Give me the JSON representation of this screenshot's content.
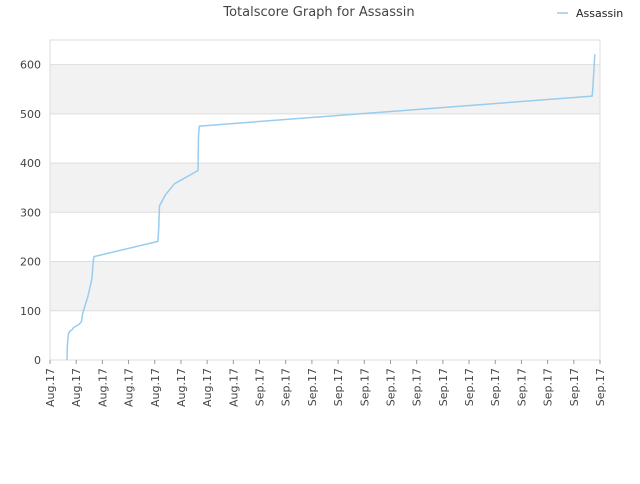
{
  "chart_data": {
    "type": "line",
    "title": "Totalscore Graph for Assassin",
    "xlabel": "",
    "ylabel": "",
    "ylim": [
      0,
      650
    ],
    "y_ticks": [
      0,
      100,
      200,
      300,
      400,
      500,
      600
    ],
    "x_tick_labels": [
      "Aug.17",
      "Aug.17",
      "Aug.17",
      "Aug.17",
      "Aug.17",
      "Aug.17",
      "Aug.17",
      "Aug.17",
      "Sep.17",
      "Sep.17",
      "Sep.17",
      "Sep.17",
      "Sep.17",
      "Sep.17",
      "Sep.17",
      "Sep.17",
      "Sep.17",
      "Sep.17",
      "Sep.17",
      "Sep.17",
      "Sep.17",
      "Sep.17"
    ],
    "grid": true,
    "legend_position": "top-right",
    "colors": {
      "series": "#99ccf0",
      "band": "#f2f2f2",
      "band_top": "#ebebeb",
      "grid": "#dddddd"
    },
    "series": [
      {
        "name": "Assassin",
        "x_index": [
          0.65,
          0.66,
          0.68,
          0.7,
          0.75,
          0.85,
          0.9,
          1.1,
          1.2,
          1.25,
          1.45,
          1.6,
          1.65,
          1.68,
          4.12,
          4.15,
          4.18,
          4.4,
          4.75,
          5.65,
          5.67,
          5.7,
          5.9,
          20.7,
          20.72,
          20.8
        ],
        "values": [
          0,
          28,
          40,
          52,
          58,
          62,
          66,
          72,
          78,
          95,
          130,
          165,
          200,
          210,
          241,
          268,
          313,
          335,
          358,
          385,
          455,
          475,
          476,
          536,
          548,
          620
        ]
      }
    ]
  }
}
